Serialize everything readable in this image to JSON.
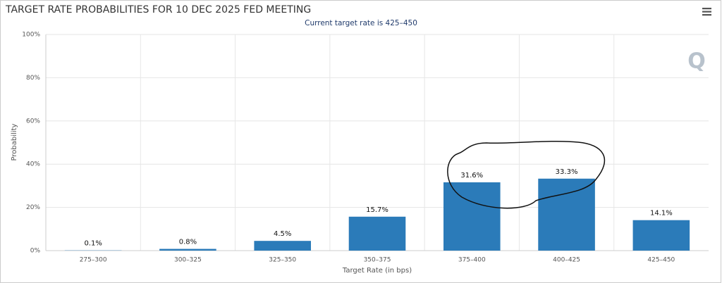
{
  "chart_data": {
    "type": "bar",
    "title": "TARGET RATE PROBABILITIES FOR 10 DEC 2025 FED MEETING",
    "subtitle": "Current target rate is 425–450",
    "x_label": "Target Rate (in bps)",
    "y_label": "Probability",
    "categories": [
      "275–300",
      "300–325",
      "325–350",
      "350–375",
      "375–400",
      "400–425",
      "425–450"
    ],
    "values": [
      0.1,
      0.8,
      4.5,
      15.7,
      31.6,
      33.3,
      14.1
    ],
    "value_labels": [
      "0.1%",
      "0.8%",
      "4.5%",
      "15.7%",
      "31.6%",
      "33.3%",
      "14.1%"
    ],
    "color": "#2b7bb9",
    "ylim": [
      0,
      100
    ],
    "yticks": [
      {
        "value": 0,
        "label": "0%"
      },
      {
        "value": 20,
        "label": "20%"
      },
      {
        "value": 40,
        "label": "40%"
      },
      {
        "value": 60,
        "label": "60%"
      },
      {
        "value": 80,
        "label": "80%"
      },
      {
        "value": 100,
        "label": "100%"
      }
    ],
    "grid": true
  }
}
